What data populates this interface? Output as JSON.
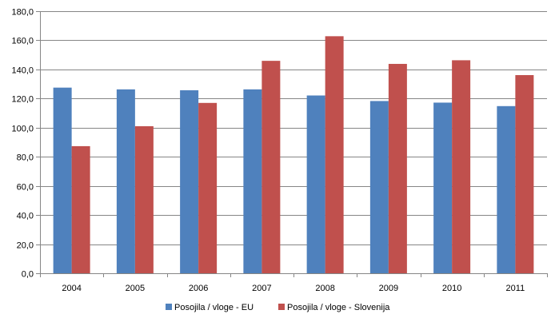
{
  "chart_data": {
    "type": "bar",
    "title": "",
    "xlabel": "",
    "ylabel": "",
    "categories": [
      "2004",
      "2005",
      "2006",
      "2007",
      "2008",
      "2009",
      "2010",
      "2011"
    ],
    "series": [
      {
        "name": "Posojila / vloge - EU",
        "color": "#4F81BD",
        "values": [
          127.5,
          126.3,
          125.7,
          126.3,
          122.1,
          118.3,
          117.2,
          114.8
        ]
      },
      {
        "name": "Posojila / vloge - Slovenija",
        "color": "#C0504D",
        "values": [
          87.3,
          101.0,
          117.0,
          145.9,
          162.8,
          143.8,
          146.3,
          136.1
        ]
      }
    ],
    "ylim": [
      0,
      180
    ],
    "ytick_step": 20,
    "ytick_labels": [
      "0,0",
      "20,0",
      "40,0",
      "60,0",
      "80,0",
      "100,0",
      "120,0",
      "140,0",
      "160,0",
      "180,0"
    ],
    "grid": true,
    "legend": "bottom"
  }
}
